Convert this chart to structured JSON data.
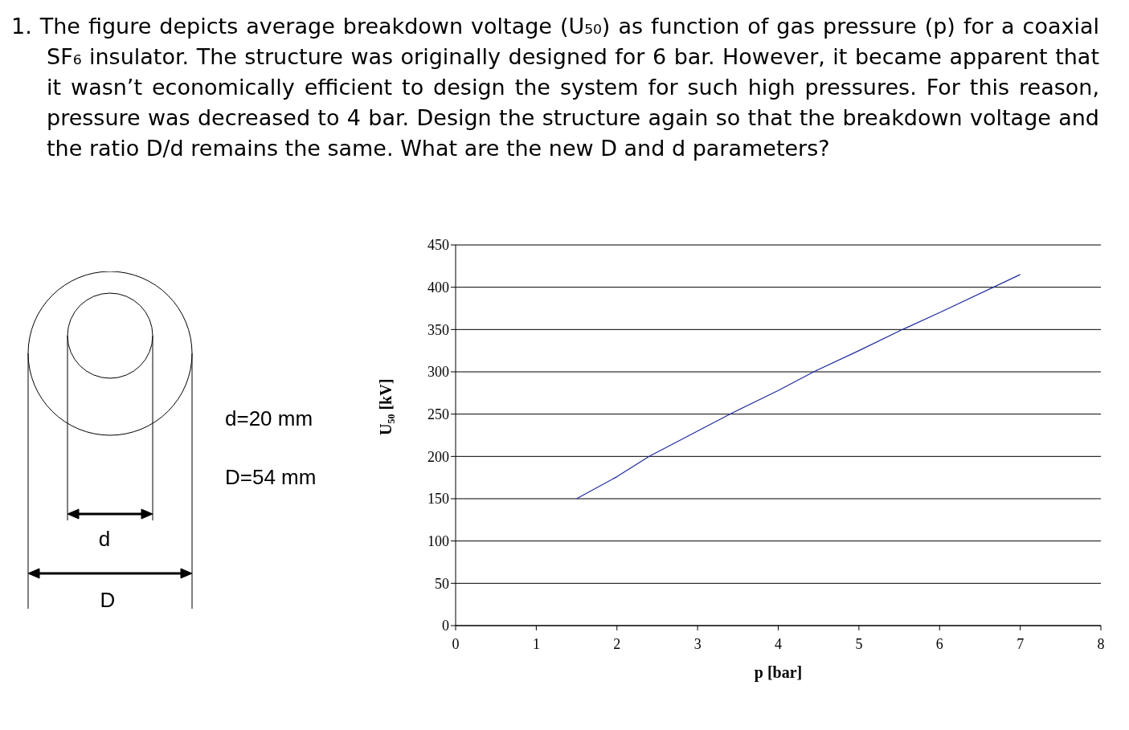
{
  "chart_data": {
    "type": "line",
    "title": "1. The figure depicts average breakdown voltage (U₅₀) as function of gas pressure (p) for a coaxial SF₆ insulator. The structure was originally designed for 6 bar. However, it became apparent that it wasn’t economically efficient to design the system for such high pressures. For this reason, pressure was decreased to 4 bar. Design the structure again so that the breakdown voltage and the ratio D/d remains the same. What are the new D and d parameters?",
    "xlabel": "p [bar]",
    "ylabel": "U₅₀ [kV]",
    "x": [
      1.5,
      2,
      2.4,
      3,
      3.4,
      4,
      4.44,
      5,
      5.54,
      6,
      7
    ],
    "series": [
      {
        "color": "#1f2a9e",
        "values": [
          150,
          176,
          200,
          230,
          250,
          278,
          300,
          325,
          350,
          370,
          415
        ]
      }
    ],
    "xlim": [
      0,
      8
    ],
    "xticks": [
      0,
      1,
      2,
      3,
      4,
      5,
      6,
      7,
      8
    ],
    "ylim": [
      0,
      450
    ],
    "yticks": [
      0,
      50,
      100,
      150,
      200,
      250,
      300,
      350,
      400,
      450
    ],
    "grid": "y",
    "marker": "none",
    "line_style": "solid",
    "annotations": [
      "d=20 mm",
      "D=54 mm",
      "d",
      "D"
    ]
  }
}
